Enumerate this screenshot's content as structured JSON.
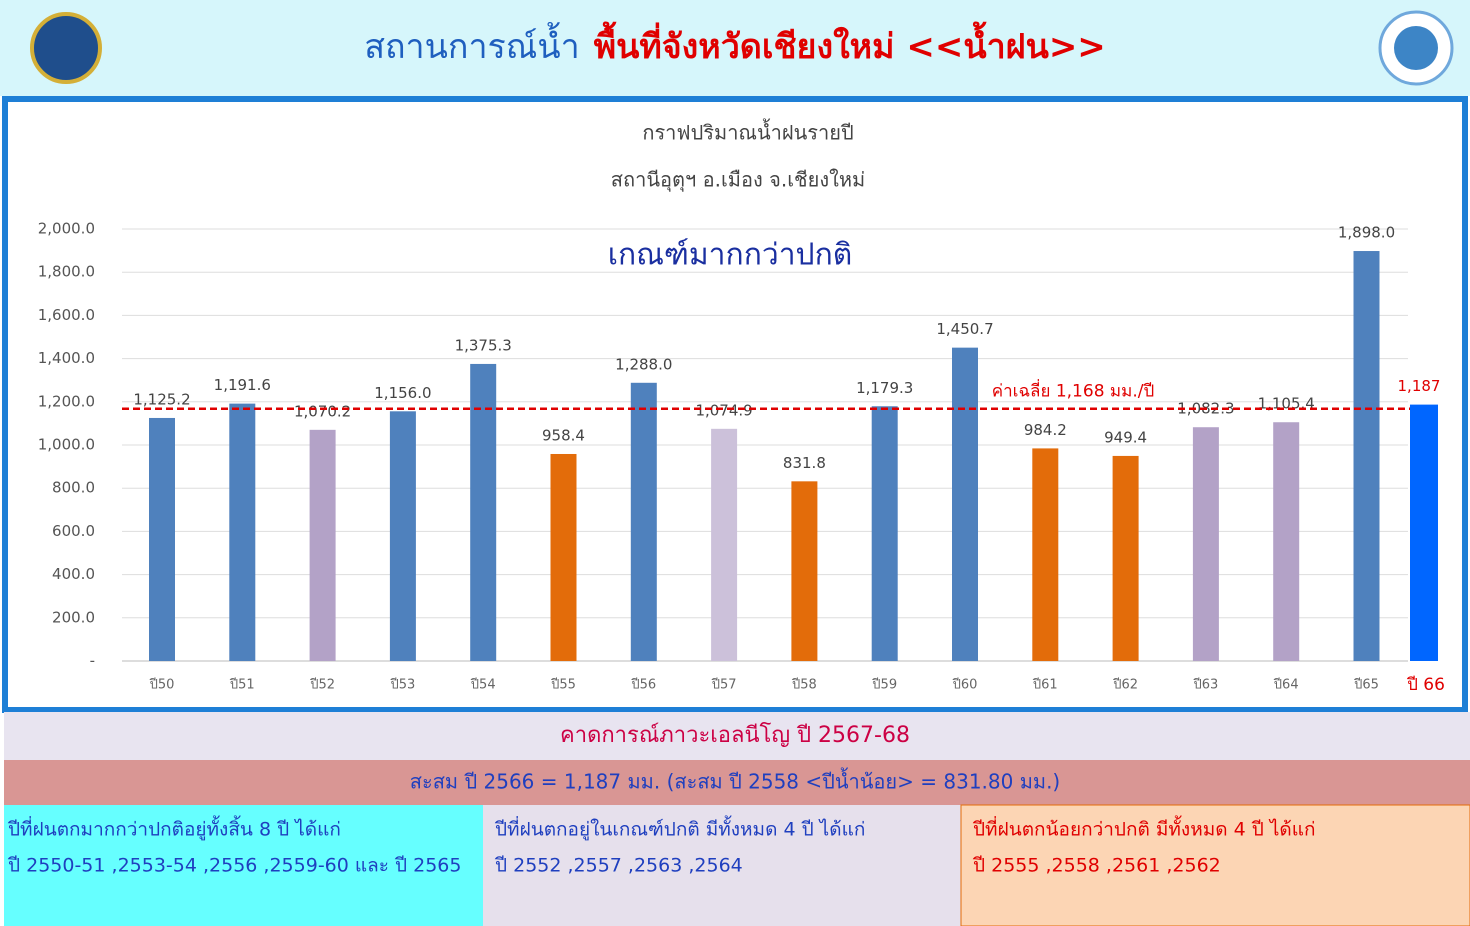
{
  "header": {
    "title_part1": "สถานการณ์น้ำ",
    "title_part2": "พื้นที่จังหวัดเชียงใหม่ <<น้ำฝน>>"
  },
  "chart_data": {
    "type": "bar",
    "title": "กราฟปริมาณน้ำฝนรายปี",
    "subtitle": "สถานีอุตุฯ อ.เมือง จ.เชียงใหม่",
    "annotation": "เกณฑ์มากกว่าปกติ",
    "categories": [
      "ปี50",
      "ปี51",
      "ปี52",
      "ปี53",
      "ปี54",
      "ปี55",
      "ปี56",
      "ปี57",
      "ปี58",
      "ปี59",
      "ปี60",
      "ปี61",
      "ปี62",
      "ปี63",
      "ปี64",
      "ปี65",
      "ปี 66"
    ],
    "values": [
      1125.2,
      1191.6,
      1070.2,
      1156.0,
      1375.3,
      958.4,
      1288.0,
      1074.9,
      831.8,
      1179.3,
      1450.7,
      984.2,
      949.4,
      1082.3,
      1105.4,
      1898.0,
      1187
    ],
    "value_labels": [
      "1,125.2",
      "1,191.6",
      "1,070.2",
      "1,156.0",
      "1,375.3",
      "958.4",
      "1,288.0",
      "1,074.9",
      "831.8",
      "1,179.3",
      "1,450.7",
      "984.2",
      "949.4",
      "1,082.3",
      "1,105.4",
      "1,898.0",
      "1,187"
    ],
    "colors": [
      "#4f81bd",
      "#4f81bd",
      "#b3a2c7",
      "#4f81bd",
      "#4f81bd",
      "#e36c0a",
      "#4f81bd",
      "#ccc1da",
      "#e36c0a",
      "#4f81bd",
      "#4f81bd",
      "#e36c0a",
      "#e36c0a",
      "#b3a2c7",
      "#b3a2c7",
      "#4f81bd",
      "#0066ff"
    ],
    "ylim": [
      0,
      2000
    ],
    "yticks": [
      {
        "value": 0,
        "label": "-"
      },
      {
        "value": 200,
        "label": "200.0"
      },
      {
        "value": 400,
        "label": "400.0"
      },
      {
        "value": 600,
        "label": "600.0"
      },
      {
        "value": 800,
        "label": "800.0"
      },
      {
        "value": 1000,
        "label": "1,000.0"
      },
      {
        "value": 1200,
        "label": "1,200.0"
      },
      {
        "value": 1400,
        "label": "1,400.0"
      },
      {
        "value": 1600,
        "label": "1,600.0"
      },
      {
        "value": 1800,
        "label": "1,800.0"
      },
      {
        "value": 2000,
        "label": "2,000.0"
      }
    ],
    "grid": true,
    "reference_line": {
      "value": 1168,
      "label": "ค่าเฉลี่ย 1,168 มม./ปี",
      "color": "#e00000"
    }
  },
  "forecast": "คาดการณ์ภาวะเอลนีโญ ปี 2567-68",
  "cumulative": "สะสม ปี 2566 = 1,187  มม.  (สะสม ปี 2558 <ปีน้ำน้อย>  = 831.80 มม.)",
  "boxes": [
    {
      "title": "ปีที่ฝนตกมากกว่าปกติอยู่ทั้งสิ้น 8 ปี ได้แก่",
      "text": "ปี 2550-51 ,2553-54 ,2556 ,2559-60 และ ปี 2565"
    },
    {
      "title": "ปีที่ฝนตกอยู่ในเกณฑ์ปกติ มีทั้งหมด 4 ปี ได้แก่",
      "text": "ปี 2552 ,2557 ,2563 ,2564"
    },
    {
      "title": "ปีที่ฝนตกน้อยกว่าปกติ มีทั้งหมด 4 ปี ได้แก่",
      "text": "ปี 2555 ,2558 ,2561 ,2562"
    }
  ]
}
